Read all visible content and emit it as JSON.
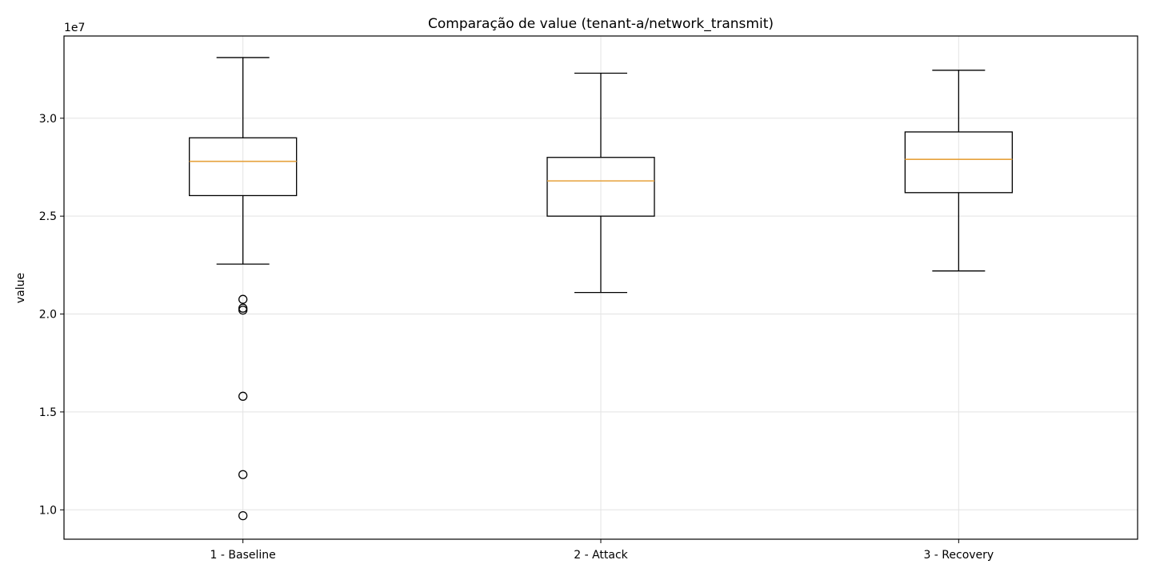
{
  "chart_data": {
    "type": "box",
    "title": "Comparação de value (tenant-a/network_transmit)",
    "xlabel": "",
    "ylabel": "value",
    "y_offset_label": "1e7",
    "y_scale_factor": 10000000,
    "ylim": [
      8.5,
      34.2
    ],
    "yticks": [
      10.0,
      15.0,
      20.0,
      25.0,
      30.0
    ],
    "ytick_labels": [
      "1.0",
      "1.5",
      "2.0",
      "2.5",
      "3.0"
    ],
    "grid": true,
    "categories": [
      "1 - Baseline",
      "2 - Attack",
      "3 - Recovery"
    ],
    "boxes": [
      {
        "label": "1 - Baseline",
        "whisker_low": 22.55,
        "q1": 26.05,
        "median": 27.8,
        "q3": 29.0,
        "whisker_high": 33.1,
        "fliers": [
          20.75,
          20.3,
          20.2,
          15.8,
          11.8,
          9.7
        ]
      },
      {
        "label": "2 - Attack",
        "whisker_low": 21.1,
        "q1": 25.0,
        "median": 26.8,
        "q3": 28.0,
        "whisker_high": 32.3,
        "fliers": []
      },
      {
        "label": "3 - Recovery",
        "whisker_low": 22.2,
        "q1": 26.2,
        "median": 27.9,
        "q3": 29.3,
        "whisker_high": 32.45,
        "fliers": []
      }
    ],
    "colors": {
      "median": "#e6a23c",
      "box": "#000000",
      "grid": "#e3e3e3"
    }
  }
}
